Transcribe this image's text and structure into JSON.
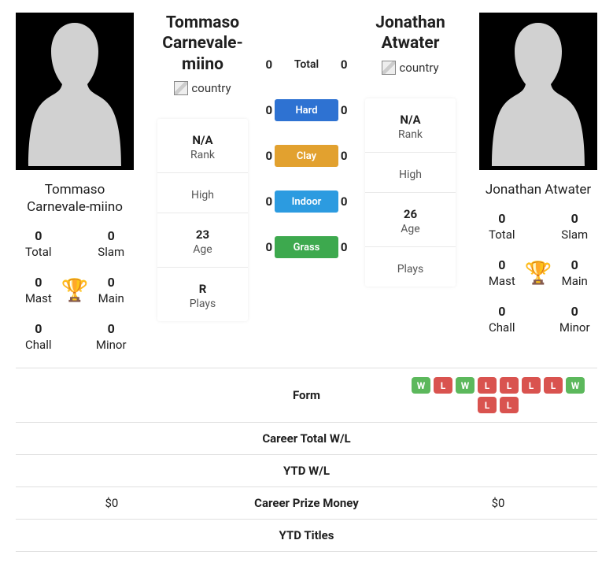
{
  "players": {
    "p1": {
      "name": "Tommaso Carnevale-miino",
      "display_name": "Tommaso Carnevale-miino",
      "flag_alt": "country",
      "rank": "N/A",
      "high": "",
      "age": "23",
      "plays": "R",
      "titles": {
        "total": "0",
        "slam": "0",
        "mast": "0",
        "main": "0",
        "chall": "0",
        "minor": "0"
      },
      "form": [],
      "career_wl": "",
      "ytd_wl": "",
      "prize": "$0",
      "ytd_titles": ""
    },
    "p2": {
      "name": "Jonathan Atwater",
      "display_name": "Jonathan Atwater",
      "flag_alt": "country",
      "rank": "N/A",
      "high": "",
      "age": "26",
      "plays": "",
      "titles": {
        "total": "0",
        "slam": "0",
        "mast": "0",
        "main": "0",
        "chall": "0",
        "minor": "0"
      },
      "form": [
        "W",
        "L",
        "W",
        "L",
        "L",
        "L",
        "L",
        "W",
        "L",
        "L"
      ],
      "career_wl": "",
      "ytd_wl": "",
      "prize": "$0",
      "ytd_titles": ""
    }
  },
  "h2h": {
    "total": {
      "label": "Total",
      "p1": "0",
      "p2": "0",
      "color": "transparent"
    },
    "hard": {
      "label": "Hard",
      "p1": "0",
      "p2": "0",
      "color": "#2e72d2"
    },
    "clay": {
      "label": "Clay",
      "p1": "0",
      "p2": "0",
      "color": "#e2a12f"
    },
    "indoor": {
      "label": "Indoor",
      "p1": "0",
      "p2": "0",
      "color": "#2c9be0"
    },
    "grass": {
      "label": "Grass",
      "p1": "0",
      "p2": "0",
      "color": "#3da94e"
    }
  },
  "labels": {
    "rank": "Rank",
    "high": "High",
    "age": "Age",
    "plays": "Plays",
    "total": "Total",
    "slam": "Slam",
    "mast": "Mast",
    "main": "Main",
    "chall": "Chall",
    "minor": "Minor",
    "form": "Form",
    "career_wl": "Career Total W/L",
    "ytd_wl": "YTD W/L",
    "prize": "Career Prize Money",
    "ytd_titles": "YTD Titles"
  },
  "style": {
    "chip_win_bg": "#5cb85c",
    "chip_loss_bg": "#d9534f",
    "trophy_color": "#3b6fad"
  }
}
